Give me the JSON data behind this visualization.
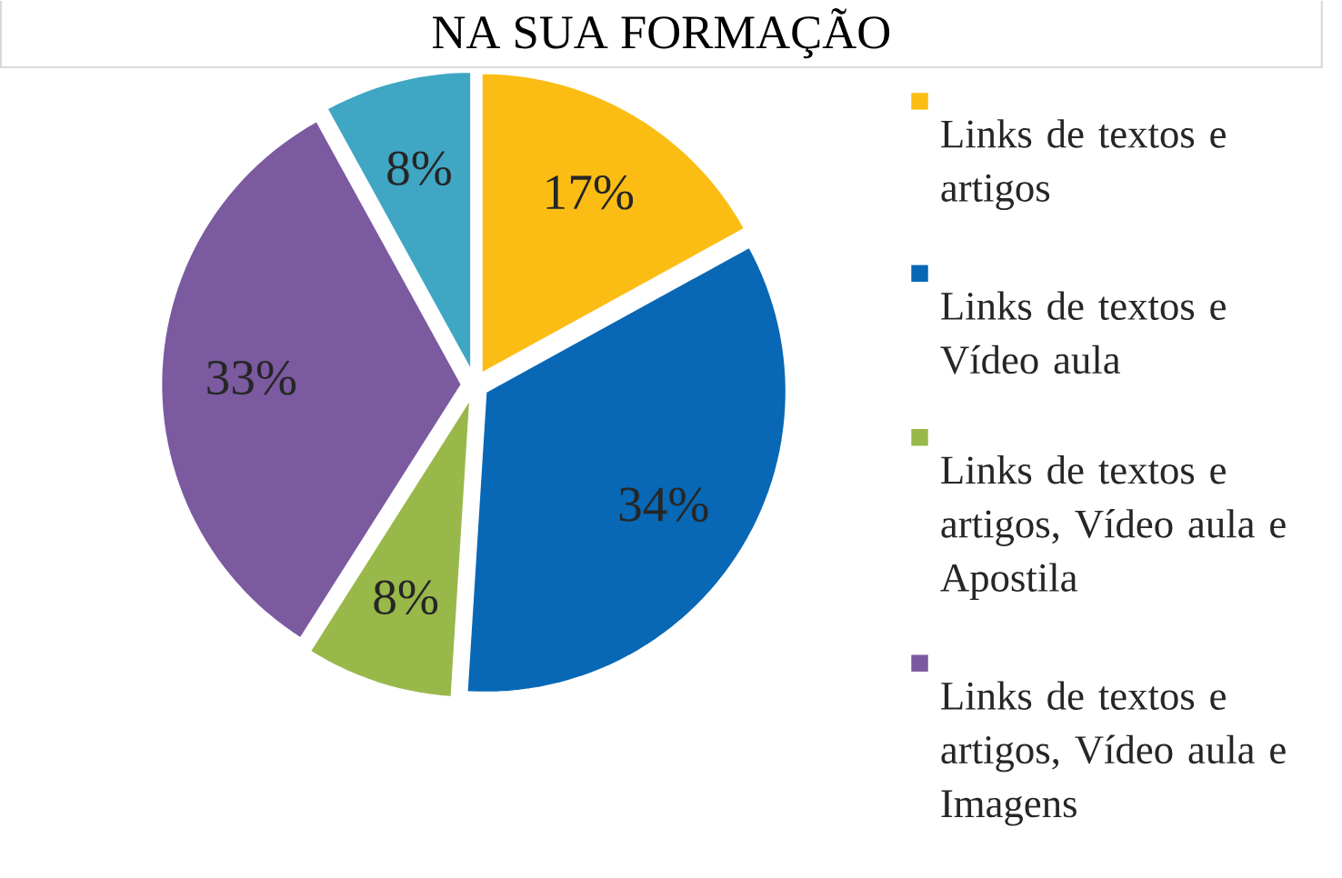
{
  "chart_data": {
    "type": "pie",
    "title": "NA SUA FORMAÇÃO",
    "categories": [
      "Links de textos e artigos",
      "Links de textos e Vídeo aula",
      "Links de textos e artigos, Vídeo aula e Apostila",
      "Links de textos e artigos, Vídeo aula e Imagens",
      null
    ],
    "values": [
      17,
      34,
      8,
      33,
      8
    ],
    "value_labels": [
      "17%",
      "34%",
      "8%",
      "33%",
      "8%"
    ],
    "colors": [
      "#fbbd14",
      "#0868b5",
      "#99b84a",
      "#7b5aa0",
      "#3fa7c4"
    ],
    "legend": "right"
  }
}
